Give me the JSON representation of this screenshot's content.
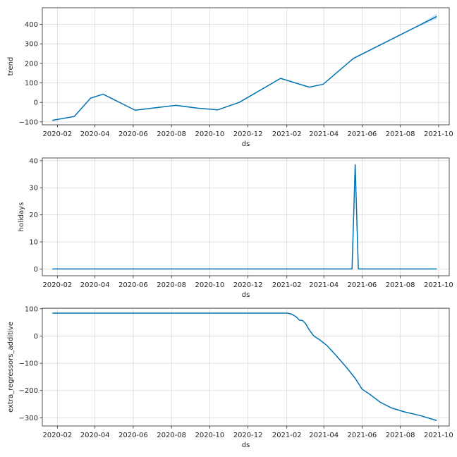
{
  "chart_data": [
    {
      "type": "line",
      "ylabel": "trend",
      "xlabel": "ds",
      "xlim": [
        "2020-01-08",
        "2021-10-18"
      ],
      "ylim": [
        -115,
        485
      ],
      "x_ticks": [
        "2020-02",
        "2020-04",
        "2020-06",
        "2020-08",
        "2020-10",
        "2020-12",
        "2021-02",
        "2021-04",
        "2021-06",
        "2021-08",
        "2021-10"
      ],
      "y_ticks": [
        -100,
        0,
        100,
        200,
        300,
        400
      ],
      "grid": true,
      "line_color": "#0072B2",
      "series": [
        {
          "x": [
            "2020-01-24",
            "2020-02-28",
            "2020-03-25",
            "2020-04-14",
            "2020-06-04",
            "2020-08-08",
            "2020-09-13",
            "2020-10-14",
            "2020-11-17",
            "2021-01-22",
            "2021-03-09",
            "2021-03-31",
            "2021-05-18",
            "2021-09-28"
          ],
          "values": [
            -92,
            -72,
            22,
            42,
            -40,
            -15,
            -30,
            -38,
            0,
            123,
            78,
            93,
            225,
            440
          ]
        }
      ],
      "uncertainty": {
        "x": [
          "2021-08-20",
          "2021-09-28"
        ],
        "upper": [
          375,
          455
        ],
        "lower": [
          375,
          428
        ]
      }
    },
    {
      "type": "line",
      "ylabel": "holidays",
      "xlabel": "ds",
      "xlim": [
        "2020-01-08",
        "2021-10-18"
      ],
      "ylim": [
        -2.5,
        41
      ],
      "x_ticks": [
        "2020-02",
        "2020-04",
        "2020-06",
        "2020-08",
        "2020-10",
        "2020-12",
        "2021-02",
        "2021-04",
        "2021-06",
        "2021-08",
        "2021-10"
      ],
      "y_ticks": [
        0,
        10,
        20,
        30,
        40
      ],
      "grid": true,
      "line_color": "#0072B2",
      "series": [
        {
          "x": [
            "2020-01-24",
            "2021-05-16",
            "2021-05-21",
            "2021-05-26",
            "2021-09-28"
          ],
          "values": [
            0,
            0,
            38.5,
            0,
            0
          ]
        }
      ]
    },
    {
      "type": "line",
      "ylabel": "extra_regressors_additive",
      "xlabel": "ds",
      "xlim": [
        "2020-01-08",
        "2021-10-18"
      ],
      "ylim": [
        -330,
        102
      ],
      "x_ticks": [
        "2020-02",
        "2020-04",
        "2020-06",
        "2020-08",
        "2020-10",
        "2020-12",
        "2021-02",
        "2021-04",
        "2021-06",
        "2021-08",
        "2021-10"
      ],
      "y_ticks": [
        -300,
        -200,
        -100,
        0,
        100
      ],
      "grid": true,
      "line_color": "#0072B2",
      "series": [
        {
          "x": [
            "2020-01-24",
            "2021-02-02",
            "2021-02-09",
            "2021-02-16",
            "2021-02-21",
            "2021-02-26",
            "2021-03-03",
            "2021-03-08",
            "2021-03-16",
            "2021-03-26",
            "2021-04-06",
            "2021-04-20",
            "2021-05-07",
            "2021-05-21",
            "2021-06-01",
            "2021-06-14",
            "2021-06-30",
            "2021-07-17",
            "2021-08-07",
            "2021-09-02",
            "2021-09-28"
          ],
          "values": [
            84,
            84,
            80,
            70,
            58,
            57,
            45,
            25,
            0,
            -15,
            -35,
            -70,
            -115,
            -155,
            -195,
            -215,
            -243,
            -263,
            -278,
            -292,
            -310
          ]
        }
      ]
    }
  ]
}
